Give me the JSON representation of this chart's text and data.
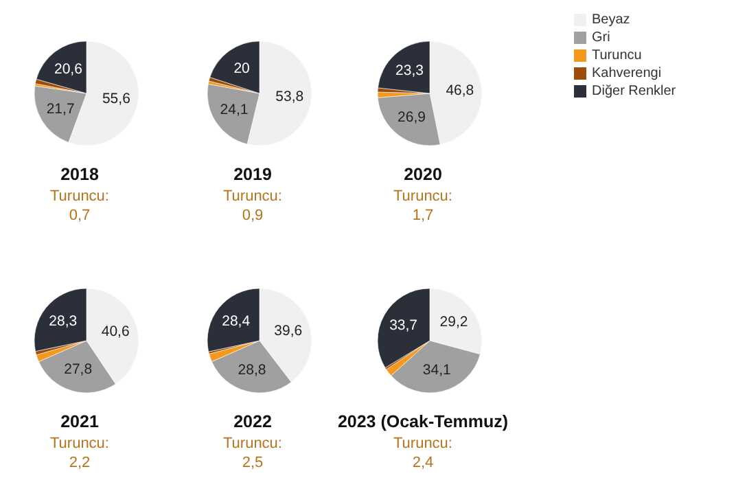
{
  "chart_data": [
    {
      "type": "pie",
      "title": "2018",
      "categories": [
        null,
        null,
        null,
        null,
        null
      ],
      "values": [
        55.6,
        21.7,
        0.7,
        1.4,
        20.6
      ],
      "colors": [
        "#f0f0f0",
        "#a0a0a0",
        "#f39a1e",
        "#9c4d0c",
        "#2b2f3a"
      ],
      "value_labels": [
        "55,6",
        "21,7",
        null,
        null,
        "20,6"
      ],
      "annotations": [
        "Turuncu:\n0,7"
      ]
    },
    {
      "type": "pie",
      "title": "2019",
      "categories": [
        null,
        null,
        null,
        null,
        null
      ],
      "values": [
        53.8,
        24.1,
        0.9,
        1.2,
        20
      ],
      "colors": [
        "#f0f0f0",
        "#a0a0a0",
        "#f39a1e",
        "#9c4d0c",
        "#2b2f3a"
      ],
      "value_labels": [
        "53,8",
        "24,1",
        null,
        null,
        "20"
      ],
      "annotations": [
        "Turuncu:\n0,9"
      ]
    },
    {
      "type": "pie",
      "title": "2020",
      "categories": [
        "Beyaz",
        "Gri",
        "Turuncu",
        "Kahverengi",
        "Diğer Renkler"
      ],
      "values": [
        46.8,
        26.9,
        1.7,
        1.3,
        23.3
      ],
      "colors": [
        "#f0f0f0",
        "#a0a0a0",
        "#f39a1e",
        "#9c4d0c",
        "#2b2f3a"
      ],
      "value_labels": [
        "46,8",
        "26,9",
        null,
        null,
        "23,3"
      ],
      "annotations": [
        "Turuncu:\n1,7"
      ],
      "legend": "right"
    },
    {
      "type": "pie",
      "title": "2021",
      "categories": [
        null,
        null,
        null,
        null,
        null
      ],
      "values": [
        40.6,
        27.8,
        2.2,
        1.1,
        28.3
      ],
      "colors": [
        "#f0f0f0",
        "#a0a0a0",
        "#f39a1e",
        "#9c4d0c",
        "#2b2f3a"
      ],
      "value_labels": [
        "40,6",
        "27,8",
        null,
        null,
        "28,3"
      ],
      "annotations": [
        "Turuncu:\n2,2"
      ]
    },
    {
      "type": "pie",
      "title": "2022",
      "categories": [
        null,
        null,
        null,
        null,
        null
      ],
      "values": [
        39.6,
        28.8,
        2.5,
        0.7,
        28.4
      ],
      "colors": [
        "#f0f0f0",
        "#a0a0a0",
        "#f39a1e",
        "#9c4d0c",
        "#2b2f3a"
      ],
      "value_labels": [
        "39,6",
        "28,8",
        null,
        null,
        "28,4"
      ],
      "annotations": [
        "Turuncu:\n2,5"
      ]
    },
    {
      "type": "pie",
      "title": "2023 (Ocak-Temmuz)",
      "categories": [
        null,
        null,
        null,
        null,
        null
      ],
      "values": [
        29.2,
        34.1,
        2.4,
        0.6,
        33.7
      ],
      "colors": [
        "#f0f0f0",
        "#a0a0a0",
        "#f39a1e",
        "#9c4d0c",
        "#2b2f3a"
      ],
      "value_labels": [
        "29,2",
        "34,1",
        null,
        null,
        "33,7"
      ],
      "annotations": [
        "Turuncu:\n2,4"
      ]
    }
  ]
}
